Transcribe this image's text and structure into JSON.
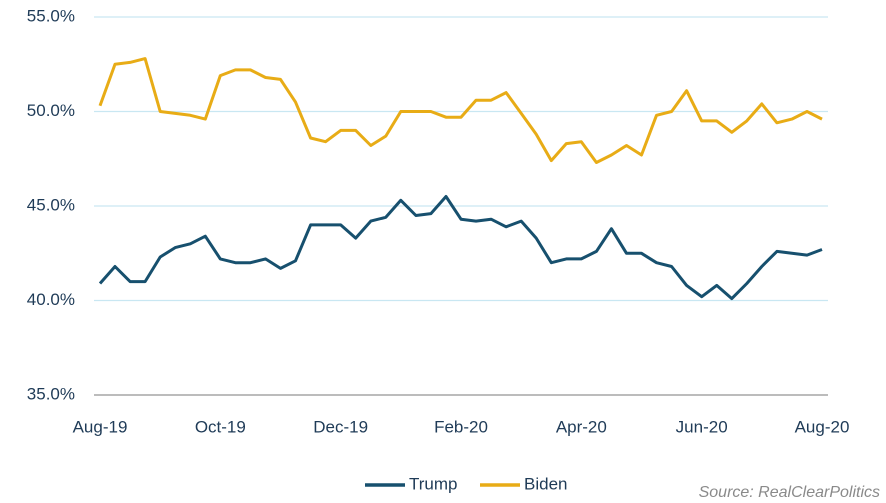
{
  "chart_data": {
    "type": "line",
    "source": "Source: RealClearPolitics",
    "categories": [
      "Aug-19",
      null,
      null,
      null,
      null,
      null,
      null,
      null,
      "Oct-19",
      null,
      null,
      null,
      null,
      null,
      null,
      null,
      "Dec-19",
      null,
      null,
      null,
      null,
      null,
      null,
      null,
      "Feb-20",
      null,
      null,
      null,
      null,
      null,
      null,
      null,
      "Apr-20",
      null,
      null,
      null,
      null,
      null,
      null,
      null,
      "Jun-20",
      null,
      null,
      null,
      null,
      null,
      null,
      null,
      "Aug-20"
    ],
    "series": [
      {
        "name": "Trump",
        "color": "#17506e",
        "values": [
          40.9,
          41.8,
          41.0,
          41.0,
          42.3,
          42.8,
          43.0,
          43.4,
          42.2,
          42.0,
          42.0,
          42.2,
          41.7,
          42.1,
          44.0,
          44.0,
          44.0,
          43.3,
          44.2,
          44.4,
          45.3,
          44.5,
          44.6,
          45.5,
          44.3,
          44.2,
          44.3,
          43.9,
          44.2,
          43.3,
          42.0,
          42.2,
          42.2,
          42.6,
          43.8,
          42.5,
          42.5,
          42.0,
          41.8,
          40.8,
          40.2,
          40.8,
          40.1,
          40.9,
          41.8,
          42.6,
          42.5,
          42.4,
          42.7
        ]
      },
      {
        "name": "Biden",
        "color": "#e8ac16",
        "values": [
          50.3,
          52.5,
          52.6,
          52.8,
          50.0,
          49.9,
          49.8,
          49.6,
          51.9,
          52.2,
          52.2,
          51.8,
          51.7,
          50.5,
          48.6,
          48.4,
          49.0,
          49.0,
          48.2,
          48.7,
          50.0,
          50.0,
          50.0,
          49.7,
          49.7,
          50.6,
          50.6,
          51.0,
          49.9,
          48.8,
          47.4,
          48.3,
          48.4,
          47.3,
          47.7,
          48.2,
          47.7,
          49.8,
          50.0,
          51.1,
          49.5,
          49.5,
          48.9,
          49.5,
          50.4,
          49.4,
          49.6,
          50.0,
          49.6
        ]
      }
    ],
    "ylim": [
      35,
      55
    ],
    "yticks": [
      {
        "value": 35,
        "label": "35.0%"
      },
      {
        "value": 40,
        "label": "40.0%"
      },
      {
        "value": 45,
        "label": "45.0%"
      },
      {
        "value": 50,
        "label": "50.0%"
      },
      {
        "value": 55,
        "label": "55.0%"
      }
    ],
    "grid": true,
    "legend": "bottom"
  }
}
